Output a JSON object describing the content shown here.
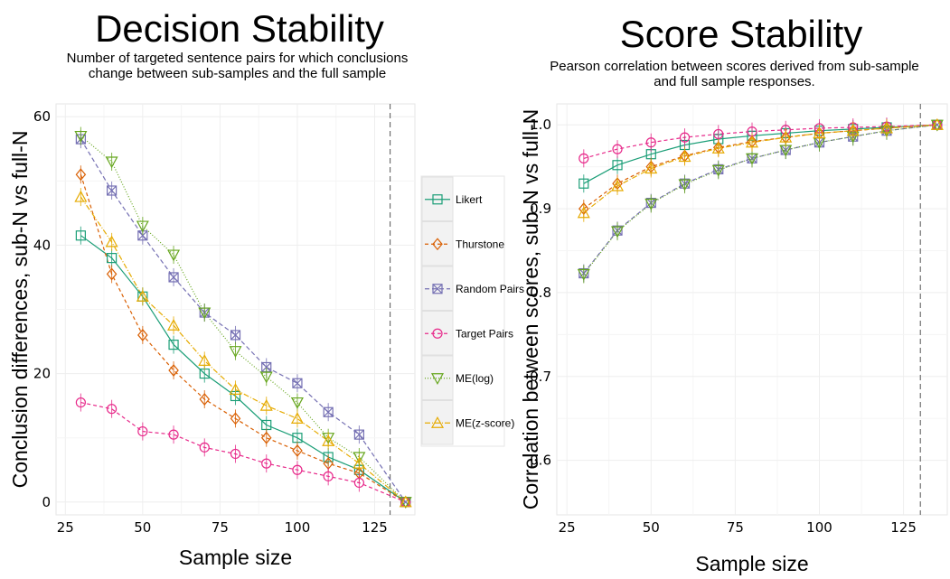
{
  "chart_data": [
    {
      "type": "line",
      "title": "Decision Stability",
      "subtitle_lines": [
        "Number of targeted sentence pairs for which conclusions",
        "change between sub-samples and the full sample"
      ],
      "xlabel": "Sample size",
      "ylabel": "Conclusion differences, sub-N vs full-N",
      "xlim": [
        22,
        138
      ],
      "ylim": [
        -2,
        62
      ],
      "xticks": [
        25,
        50,
        75,
        100,
        125
      ],
      "yticks": [
        0,
        20,
        40,
        60
      ],
      "xtick_labels": [
        "25",
        "50",
        "75",
        "100",
        "125"
      ],
      "ytick_labels": [
        "0",
        "20",
        "40",
        "60"
      ],
      "vline_x": 130,
      "grid": true,
      "legend_position": "right",
      "legend": [
        "Likert",
        "Thurstone",
        "Random Pairs",
        "Target Pairs",
        "ME(log)",
        "ME(z-score)"
      ],
      "x": [
        30,
        40,
        50,
        60,
        70,
        80,
        90,
        100,
        110,
        120,
        135
      ],
      "series": [
        {
          "name": "Likert",
          "color": "#1b9e77",
          "marker": "square",
          "dash": "",
          "values": [
            41.5,
            38,
            32,
            24.5,
            20,
            16.5,
            12,
            10,
            7,
            5,
            0
          ]
        },
        {
          "name": "Thurstone",
          "color": "#d95f02",
          "marker": "diamond",
          "dash": "4,3",
          "values": [
            51,
            35.5,
            26,
            20.5,
            16,
            13,
            10,
            8,
            6,
            4.5,
            0
          ]
        },
        {
          "name": "Random Pairs",
          "color": "#7570b3",
          "marker": "x",
          "dash": "5,3",
          "values": [
            56.5,
            48.5,
            41.5,
            35,
            29.5,
            26,
            21,
            18.5,
            14,
            10.5,
            0
          ]
        },
        {
          "name": "Target Pairs",
          "color": "#e7298a",
          "marker": "circle",
          "dash": "4,3",
          "values": [
            15.5,
            14.5,
            11,
            10.5,
            8.5,
            7.5,
            6,
            5,
            4,
            3,
            0
          ]
        },
        {
          "name": "ME(log)",
          "color": "#66a61e",
          "marker": "tri-down",
          "dash": "1,2",
          "values": [
            57,
            53,
            43,
            38.5,
            29.5,
            23.5,
            19.5,
            15.5,
            10,
            7,
            0
          ]
        },
        {
          "name": "ME(z-score)",
          "color": "#e6ab02",
          "marker": "tri-up",
          "dash": "6,2,1,2",
          "values": [
            47.5,
            40.5,
            32,
            27.5,
            22,
            17.5,
            15,
            13,
            9.5,
            6,
            0
          ]
        }
      ]
    },
    {
      "type": "line",
      "title": "Score Stability",
      "subtitle_lines": [
        "Pearson correlation between scores derived from sub-sample",
        "and full sample responses."
      ],
      "xlabel": "Sample size",
      "ylabel": "Correlation between scores, sub-N vs full-N",
      "xlim": [
        22,
        138
      ],
      "ylim": [
        0.535,
        1.025
      ],
      "xticks": [
        25,
        50,
        75,
        100,
        125
      ],
      "yticks": [
        0.6,
        0.7,
        0.8,
        0.9,
        1.0
      ],
      "xtick_labels": [
        "25",
        "50",
        "75",
        "100",
        "125"
      ],
      "ytick_labels": [
        "0.6",
        "0.7",
        "0.8",
        "0.9",
        "1.0"
      ],
      "vline_x": 130,
      "grid": true,
      "x": [
        30,
        40,
        50,
        60,
        70,
        80,
        90,
        100,
        110,
        120,
        135
      ],
      "series": [
        {
          "name": "Likert",
          "color": "#1b9e77",
          "marker": "square",
          "dash": "",
          "values": [
            0.93,
            0.952,
            0.965,
            0.976,
            0.983,
            0.987,
            0.99,
            0.993,
            0.995,
            0.997,
            1.0
          ]
        },
        {
          "name": "Thurstone",
          "color": "#d95f02",
          "marker": "diamond",
          "dash": "4,3",
          "values": [
            0.9,
            0.93,
            0.95,
            0.963,
            0.973,
            0.98,
            0.985,
            0.99,
            0.993,
            0.996,
            1.0
          ]
        },
        {
          "name": "Random Pairs",
          "color": "#7570b3",
          "marker": "x",
          "dash": "5,3",
          "values": [
            0.823,
            0.874,
            0.907,
            0.93,
            0.947,
            0.96,
            0.97,
            0.979,
            0.986,
            0.993,
            1.0
          ]
        },
        {
          "name": "Target Pairs",
          "color": "#e7298a",
          "marker": "circle",
          "dash": "4,3",
          "values": [
            0.96,
            0.971,
            0.979,
            0.985,
            0.989,
            0.992,
            0.994,
            0.996,
            0.997,
            0.998,
            1.0
          ]
        },
        {
          "name": "ME(log)",
          "color": "#66a61e",
          "marker": "tri-down",
          "dash": "1,2",
          "values": [
            0.822,
            0.873,
            0.906,
            0.929,
            0.946,
            0.96,
            0.97,
            0.979,
            0.986,
            0.993,
            1.0
          ]
        },
        {
          "name": "ME(z-score)",
          "color": "#e6ab02",
          "marker": "tri-up",
          "dash": "6,2,1,2",
          "values": [
            0.895,
            0.927,
            0.948,
            0.962,
            0.972,
            0.979,
            0.985,
            0.99,
            0.993,
            0.996,
            1.0
          ]
        }
      ]
    }
  ]
}
